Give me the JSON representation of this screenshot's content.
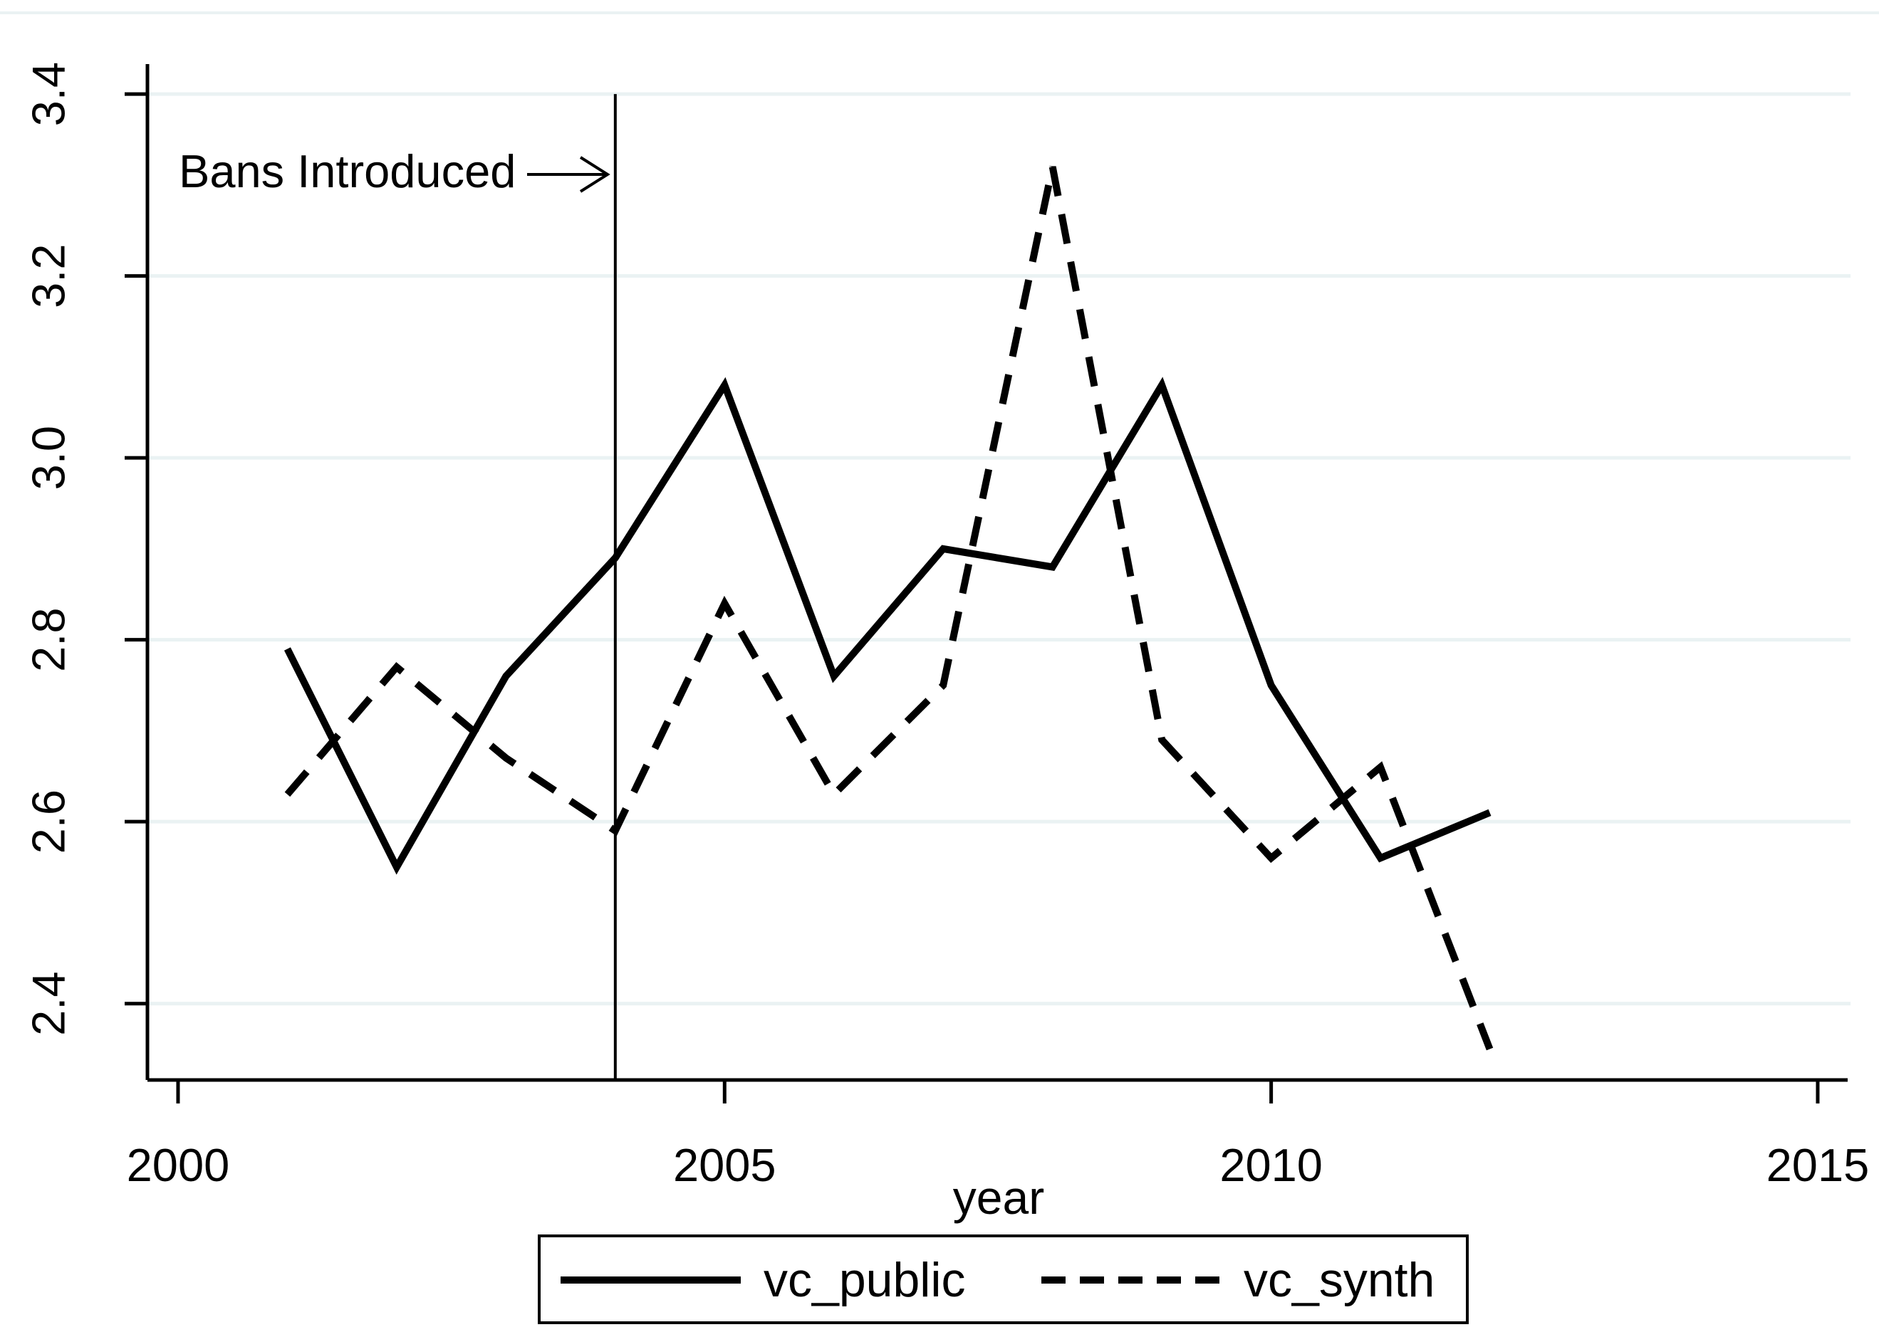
{
  "chart_data": {
    "type": "line",
    "title": "",
    "xlabel": "year",
    "ylabel": "",
    "x": [
      2001,
      2002,
      2003,
      2004,
      2005,
      2006,
      2007,
      2008,
      2009,
      2010,
      2011,
      2012
    ],
    "series": [
      {
        "name": "vc_public",
        "style": "solid",
        "values": [
          2.79,
          2.55,
          2.76,
          2.89,
          3.08,
          2.76,
          2.9,
          2.88,
          3.08,
          2.75,
          2.56,
          2.61
        ]
      },
      {
        "name": "vc_synth",
        "style": "dashed",
        "values": [
          2.63,
          2.77,
          2.67,
          2.59,
          2.84,
          2.63,
          2.75,
          3.32,
          2.69,
          2.56,
          2.66,
          2.35
        ]
      }
    ],
    "xticks": [
      2000,
      2005,
      2010,
      2015
    ],
    "yticks": [
      2.4,
      2.6,
      2.8,
      3.0,
      3.2,
      3.4
    ],
    "ytick_labels": [
      "2.4",
      "2.6",
      "2.8",
      "3.0",
      "3.2",
      "3.4"
    ],
    "xlim": [
      1999.72,
      2015.3
    ],
    "ylim": [
      2.316,
      3.433
    ],
    "grid": "horizontal",
    "legend_position": "bottom",
    "annotations": [
      {
        "type": "vline",
        "x": 2004,
        "y_top": 3.4
      },
      {
        "type": "text",
        "text": "Bans Introduced",
        "arrow": "right",
        "points_to_x": 2004
      }
    ]
  },
  "style": {
    "line_color": "#000000",
    "grid_color": "#eaf2f3",
    "background": "#ffffff",
    "axis_color": "#000000",
    "legend_border_color": "#000000"
  }
}
